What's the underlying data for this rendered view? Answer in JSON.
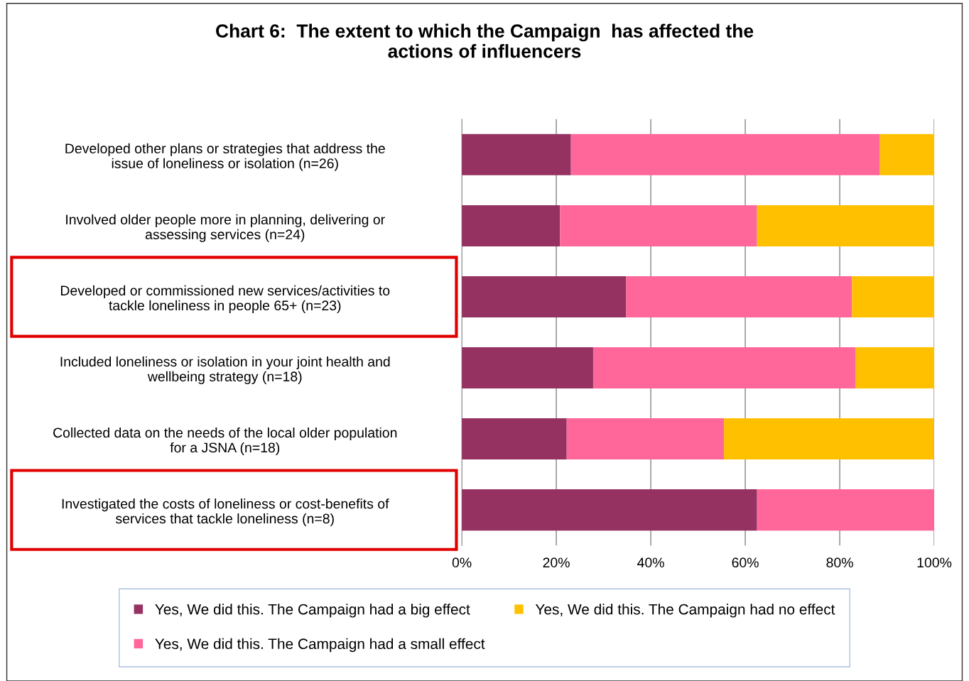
{
  "chart_data": {
    "type": "bar",
    "orientation": "horizontal",
    "stacked": true,
    "title": "Chart 6:  The extent to which the Campaign  has affected the\nactions of influencers",
    "categories": [
      "Developed other plans or strategies that address the\nissue of loneliness or isolation (n=26)",
      "Involved older people more in planning, delivering or\nassessing services (n=24)",
      "Developed or commissioned new services/activities to\ntackle loneliness in people 65+ (n=23)",
      "Included loneliness or isolation in your joint health and\nwellbeing strategy (n=18)",
      "Collected data on the needs of the local older population\nfor a JSNA (n=18)",
      "Investigated the costs of loneliness or cost-benefits of\nservices that tackle loneliness (n=8)"
    ],
    "series": [
      {
        "name": "Yes, We did this. The Campaign had a big effect",
        "color": "#953262",
        "values": [
          23.1,
          20.8,
          34.8,
          27.8,
          22.2,
          62.5
        ]
      },
      {
        "name": "Yes, We did this. The Campaign had a small effect",
        "color": "#ff6699",
        "values": [
          65.4,
          41.7,
          47.8,
          55.6,
          33.3,
          37.5
        ]
      },
      {
        "name": "Yes, We did this. The Campaign had no effect",
        "color": "#ffc000",
        "values": [
          11.5,
          37.5,
          17.4,
          16.7,
          44.4,
          0
        ]
      }
    ],
    "xlim": [
      0,
      100
    ],
    "xticks": [
      {
        "value": 0,
        "label": "0%"
      },
      {
        "value": 20,
        "label": "20%"
      },
      {
        "value": 40,
        "label": "40%"
      },
      {
        "value": 60,
        "label": "60%"
      },
      {
        "value": 80,
        "label": "80%"
      },
      {
        "value": 100,
        "label": "100%"
      }
    ],
    "grid": "x",
    "legend": "bottom"
  }
}
